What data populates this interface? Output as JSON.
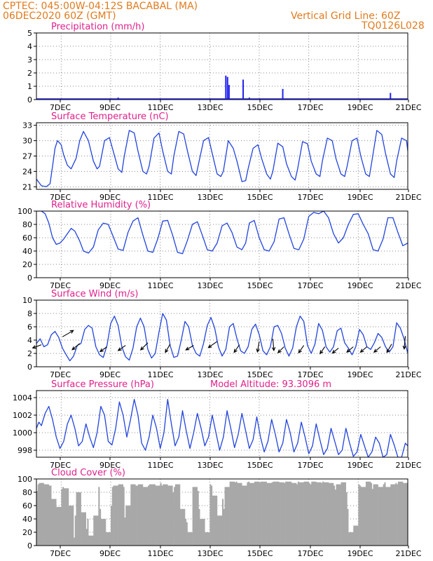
{
  "header": {
    "line1": "CPTEC:    045:00W-04:12S   BACABAL (MA)",
    "line2": "06DEC2020 60Z (GMT)",
    "grid_note": "Vertical Grid Line: 60Z",
    "code": "TQ0126L028"
  },
  "x_ticks": [
    "7DEC",
    "9DEC",
    "11DEC",
    "13DEC",
    "15DEC",
    "17DEC",
    "19DEC",
    "21DEC"
  ],
  "chart_data": [
    {
      "type": "bar",
      "title": "Precipitation (mm/h)",
      "ylim": [
        0,
        5
      ],
      "yticks": [
        "0",
        "1",
        "2",
        "3",
        "4",
        "5"
      ],
      "grid": true,
      "color": "#2222ee",
      "bars": [
        {
          "day": 9.3,
          "value": 0.15
        },
        {
          "day": 13.65,
          "value": 1.8
        },
        {
          "day": 13.72,
          "value": 1.7
        },
        {
          "day": 13.78,
          "value": 1.1
        },
        {
          "day": 14.35,
          "value": 1.5
        },
        {
          "day": 14.6,
          "value": 0.15
        },
        {
          "day": 15.95,
          "value": 0.8
        },
        {
          "day": 20.3,
          "value": 0.5
        }
      ]
    },
    {
      "type": "line",
      "title": "Surface Temperature (nC)",
      "ylim": [
        20.5,
        33.5
      ],
      "yticks": [
        "21",
        "24",
        "27",
        "30",
        "33"
      ],
      "grid": true,
      "color": "#2244dd",
      "x": [
        6.0,
        6.2,
        6.4,
        6.55,
        6.65,
        6.75,
        6.85,
        7.0,
        7.1,
        7.25,
        7.4,
        7.6,
        7.75,
        7.9,
        8.1,
        8.3,
        8.45,
        8.55,
        8.75,
        8.95,
        9.1,
        9.3,
        9.45,
        9.55,
        9.75,
        9.95,
        10.1,
        10.3,
        10.45,
        10.55,
        10.75,
        10.95,
        11.1,
        11.3,
        11.45,
        11.55,
        11.75,
        11.95,
        12.1,
        12.3,
        12.45,
        12.55,
        12.75,
        12.95,
        13.1,
        13.3,
        13.45,
        13.55,
        13.75,
        13.95,
        14.1,
        14.3,
        14.45,
        14.55,
        14.75,
        14.95,
        15.1,
        15.3,
        15.45,
        15.55,
        15.75,
        15.95,
        16.1,
        16.3,
        16.45,
        16.55,
        16.75,
        16.95,
        17.1,
        17.3,
        17.45,
        17.55,
        17.75,
        17.95,
        18.1,
        18.3,
        18.45,
        18.55,
        18.75,
        18.95,
        19.1,
        19.3,
        19.45,
        19.55,
        19.75,
        19.95,
        20.1,
        20.3,
        20.45,
        20.55,
        20.75,
        20.95,
        21.0
      ],
      "y": [
        22.5,
        21.2,
        21.0,
        21.6,
        25.0,
        28.5,
        30.0,
        29.2,
        27.2,
        25.2,
        24.5,
        26.5,
        30.0,
        31.8,
        30.0,
        26.0,
        24.5,
        25.0,
        30.0,
        30.6,
        28.0,
        24.5,
        23.8,
        27.0,
        32.0,
        31.5,
        28.0,
        24.0,
        23.5,
        25.0,
        30.5,
        31.5,
        28.0,
        24.0,
        23.5,
        27.0,
        31.8,
        31.3,
        28.0,
        24.0,
        23.2,
        25.5,
        30.0,
        30.6,
        27.5,
        23.5,
        23.0,
        24.0,
        30.0,
        28.5,
        26.0,
        22.0,
        22.2,
        24.5,
        28.5,
        29.2,
        26.5,
        23.5,
        22.5,
        24.0,
        29.5,
        28.8,
        25.5,
        23.0,
        22.3,
        24.5,
        29.8,
        29.4,
        26.0,
        23.5,
        23.0,
        26.0,
        30.5,
        30.0,
        26.5,
        23.5,
        23.0,
        25.0,
        30.0,
        30.5,
        27.0,
        23.5,
        23.0,
        26.0,
        32.0,
        31.2,
        27.5,
        23.5,
        22.8,
        26.0,
        30.5,
        30.0,
        28.0
      ]
    },
    {
      "type": "line",
      "title": "Relative Humidity (%)",
      "ylim": [
        0,
        100
      ],
      "yticks": [
        "0",
        "20",
        "40",
        "60",
        "80",
        "100"
      ],
      "grid": true,
      "color": "#2244dd",
      "x": [
        6.0,
        6.2,
        6.35,
        6.5,
        6.65,
        6.8,
        6.95,
        7.1,
        7.25,
        7.4,
        7.55,
        7.75,
        7.9,
        8.1,
        8.3,
        8.5,
        8.7,
        8.9,
        9.1,
        9.3,
        9.5,
        9.7,
        9.9,
        10.1,
        10.3,
        10.5,
        10.7,
        10.9,
        11.1,
        11.3,
        11.5,
        11.7,
        11.9,
        12.1,
        12.3,
        12.5,
        12.7,
        12.9,
        13.1,
        13.3,
        13.5,
        13.7,
        13.9,
        14.1,
        14.3,
        14.45,
        14.6,
        14.8,
        15.0,
        15.2,
        15.4,
        15.6,
        15.8,
        16.0,
        16.2,
        16.4,
        16.6,
        16.8,
        17.0,
        17.2,
        17.4,
        17.6,
        17.8,
        18.0,
        18.2,
        18.4,
        18.6,
        18.8,
        19.0,
        19.2,
        19.4,
        19.6,
        19.8,
        20.0,
        20.2,
        20.4,
        20.6,
        20.8,
        21.0
      ],
      "y": [
        100,
        100,
        96,
        82,
        60,
        50,
        52,
        58,
        66,
        74,
        70,
        55,
        40,
        37,
        46,
        72,
        82,
        80,
        62,
        43,
        41,
        68,
        85,
        90,
        64,
        40,
        38,
        58,
        85,
        86,
        64,
        38,
        36,
        56,
        80,
        84,
        64,
        42,
        40,
        52,
        78,
        82,
        68,
        46,
        42,
        52,
        82,
        86,
        60,
        42,
        40,
        54,
        88,
        90,
        66,
        44,
        42,
        58,
        92,
        98,
        96,
        100,
        90,
        66,
        52,
        60,
        80,
        95,
        96,
        80,
        66,
        42,
        40,
        58,
        90,
        90,
        68,
        48,
        52
      ]
    },
    {
      "type": "line",
      "title": "Surface Wind (m/s)",
      "ylim": [
        0,
        10
      ],
      "yticks": [
        "0",
        "2",
        "4",
        "6",
        "8",
        "10"
      ],
      "grid": true,
      "color": "#2244dd",
      "x": [
        6.0,
        6.15,
        6.3,
        6.45,
        6.6,
        6.75,
        6.9,
        7.05,
        7.2,
        7.35,
        7.5,
        7.65,
        7.8,
        7.95,
        8.1,
        8.25,
        8.4,
        8.55,
        8.7,
        8.85,
        9.0,
        9.15,
        9.3,
        9.45,
        9.6,
        9.75,
        9.9,
        10.05,
        10.2,
        10.35,
        10.5,
        10.65,
        10.8,
        10.95,
        11.1,
        11.25,
        11.4,
        11.55,
        11.7,
        11.85,
        12.0,
        12.15,
        12.3,
        12.45,
        12.6,
        12.75,
        12.9,
        13.05,
        13.2,
        13.35,
        13.5,
        13.65,
        13.8,
        13.95,
        14.1,
        14.25,
        14.4,
        14.55,
        14.7,
        14.85,
        15.0,
        15.15,
        15.3,
        15.45,
        15.6,
        15.75,
        15.9,
        16.05,
        16.2,
        16.35,
        16.5,
        16.65,
        16.8,
        16.95,
        17.1,
        17.25,
        17.4,
        17.55,
        17.7,
        17.85,
        18.0,
        18.15,
        18.3,
        18.45,
        18.6,
        18.75,
        18.9,
        19.05,
        19.2,
        19.35,
        19.5,
        19.65,
        19.8,
        19.95,
        20.1,
        20.25,
        20.4,
        20.55,
        20.7,
        20.85,
        21.0
      ],
      "y": [
        3.5,
        4.2,
        3.0,
        3.3,
        4.8,
        5.3,
        4.4,
        2.8,
        1.8,
        0.9,
        1.6,
        3.2,
        3.5,
        5.6,
        6.2,
        5.8,
        3.0,
        1.8,
        1.4,
        3.2,
        6.5,
        7.6,
        6.2,
        3.0,
        1.5,
        1.0,
        2.8,
        6.0,
        7.3,
        6.0,
        2.6,
        1.3,
        2.0,
        5.2,
        8.0,
        7.0,
        3.2,
        1.4,
        1.6,
        4.0,
        6.8,
        6.0,
        3.2,
        2.0,
        1.6,
        3.5,
        6.2,
        7.4,
        5.8,
        3.0,
        1.6,
        2.6,
        6.0,
        6.5,
        4.2,
        2.4,
        2.0,
        3.0,
        5.6,
        6.4,
        4.8,
        2.4,
        1.8,
        3.0,
        6.0,
        6.2,
        5.0,
        2.8,
        1.6,
        2.8,
        6.0,
        7.6,
        6.8,
        3.2,
        2.0,
        3.4,
        6.5,
        5.5,
        3.0,
        2.2,
        3.0,
        5.4,
        5.8,
        3.6,
        2.8,
        1.8,
        3.0,
        5.6,
        4.8,
        3.0,
        2.6,
        3.6,
        5.0,
        4.4,
        3.0,
        2.2,
        3.0,
        6.6,
        5.8,
        4.2,
        2.0
      ],
      "vectors": [
        {
          "day": 6.2,
          "speed": 3.3,
          "dir": 200
        },
        {
          "day": 7.05,
          "speed": 4.5,
          "dir": 30
        },
        {
          "day": 7.75,
          "speed": 3.5,
          "dir": 220
        },
        {
          "day": 8.85,
          "speed": 3.0,
          "dir": 215
        },
        {
          "day": 9.6,
          "speed": 3.2,
          "dir": 215
        },
        {
          "day": 10.5,
          "speed": 3.6,
          "dir": 225
        },
        {
          "day": 11.4,
          "speed": 3.4,
          "dir": 240
        },
        {
          "day": 12.35,
          "speed": 3.2,
          "dir": 210
        },
        {
          "day": 13.3,
          "speed": 3.8,
          "dir": 215
        },
        {
          "day": 14.2,
          "speed": 3.3,
          "dir": 235
        },
        {
          "day": 15.0,
          "speed": 3.8,
          "dir": 260
        },
        {
          "day": 15.55,
          "speed": 4.2,
          "dir": 275
        },
        {
          "day": 16.0,
          "speed": 3.0,
          "dir": 225
        },
        {
          "day": 16.8,
          "speed": 3.2,
          "dir": 235
        },
        {
          "day": 17.65,
          "speed": 3.0,
          "dir": 235
        },
        {
          "day": 18.2,
          "speed": 2.8,
          "dir": 220
        },
        {
          "day": 18.8,
          "speed": 3.0,
          "dir": 220
        },
        {
          "day": 19.35,
          "speed": 3.0,
          "dir": 220
        },
        {
          "day": 19.9,
          "speed": 3.0,
          "dir": 220
        },
        {
          "day": 20.35,
          "speed": 3.4,
          "dir": 240
        },
        {
          "day": 20.9,
          "speed": 4.6,
          "dir": 265
        }
      ]
    },
    {
      "type": "line",
      "title": "Surface Pressure (hPa)",
      "annotation": "Model Altitude: 93.3096 m",
      "ylim": [
        997.2,
        1004.8
      ],
      "yticks": [
        "998",
        "1000",
        "1002",
        "1004"
      ],
      "grid": true,
      "color": "#2244dd",
      "x": [
        6.0,
        6.1,
        6.2,
        6.35,
        6.5,
        6.65,
        6.8,
        6.95,
        7.1,
        7.25,
        7.4,
        7.55,
        7.7,
        7.85,
        8.0,
        8.15,
        8.3,
        8.45,
        8.6,
        8.75,
        8.9,
        9.05,
        9.2,
        9.35,
        9.5,
        9.65,
        9.8,
        9.95,
        10.1,
        10.25,
        10.4,
        10.55,
        10.7,
        10.85,
        11.0,
        11.15,
        11.3,
        11.45,
        11.6,
        11.75,
        11.9,
        12.05,
        12.2,
        12.35,
        12.5,
        12.65,
        12.8,
        12.95,
        13.1,
        13.25,
        13.4,
        13.55,
        13.7,
        13.85,
        14.0,
        14.15,
        14.3,
        14.45,
        14.6,
        14.75,
        14.9,
        15.05,
        15.2,
        15.35,
        15.5,
        15.65,
        15.8,
        15.95,
        16.1,
        16.25,
        16.4,
        16.55,
        16.7,
        16.85,
        17.0,
        17.15,
        17.3,
        17.45,
        17.6,
        17.75,
        17.9,
        18.05,
        18.2,
        18.35,
        18.5,
        18.65,
        18.8,
        18.95,
        19.1,
        19.25,
        19.4,
        19.55,
        19.7,
        19.85,
        20.0,
        20.15,
        20.3,
        20.45,
        20.6,
        20.75,
        20.9,
        21.0
      ],
      "y": [
        1000.5,
        1001.2,
        1000.8,
        1002.2,
        1003.0,
        1001.5,
        999.5,
        998.2,
        999.0,
        1001.0,
        1002.0,
        1000.5,
        998.5,
        999.0,
        1001.0,
        999.5,
        998.3,
        1000.0,
        1003.0,
        1002.0,
        999.0,
        998.6,
        1000.5,
        1003.5,
        1002.0,
        999.5,
        1001.5,
        1003.8,
        1002.0,
        998.8,
        998.0,
        999.5,
        1002.0,
        1000.5,
        998.2,
        1000.0,
        1003.8,
        1001.0,
        998.5,
        999.5,
        1002.5,
        1000.2,
        998.2,
        1000.0,
        1002.2,
        1000.5,
        998.5,
        999.5,
        1002.0,
        1000.0,
        998.0,
        999.5,
        1002.5,
        1000.5,
        998.3,
        999.8,
        1002.2,
        1000.2,
        998.2,
        999.2,
        1001.8,
        999.5,
        997.8,
        999.0,
        1001.5,
        999.8,
        997.8,
        998.8,
        1001.5,
        1000.0,
        997.8,
        998.8,
        1001.2,
        999.5,
        997.6,
        998.5,
        1001.0,
        999.2,
        997.5,
        998.2,
        1000.5,
        999.0,
        997.5,
        998.0,
        1000.5,
        998.8,
        997.3,
        997.8,
        999.8,
        998.5,
        997.2,
        997.8,
        999.5,
        998.8,
        997.2,
        997.5,
        999.8,
        998.6,
        997.2,
        997.2,
        998.8,
        998.5
      ]
    },
    {
      "type": "area",
      "title": "Cloud Cover (%)",
      "ylim": [
        0,
        100
      ],
      "yticks": [
        "0",
        "20",
        "40",
        "60",
        "80",
        "100"
      ],
      "grid": true,
      "color": "#a8a8a8",
      "x": [
        6.0,
        6.05,
        6.1,
        6.3,
        6.5,
        6.55,
        6.6,
        6.8,
        7.0,
        7.05,
        7.1,
        7.3,
        7.5,
        7.55,
        7.6,
        7.8,
        8.0,
        8.05,
        8.1,
        8.3,
        8.5,
        8.55,
        8.6,
        8.8,
        9.0,
        9.05,
        9.1,
        9.3,
        9.5,
        9.55,
        9.6,
        9.8,
        10.0,
        10.05,
        10.1,
        10.3,
        10.5,
        10.55,
        10.6,
        10.8,
        11.0,
        11.05,
        11.1,
        11.3,
        11.5,
        11.55,
        11.6,
        11.8,
        12.0,
        12.05,
        12.1,
        12.3,
        12.5,
        12.55,
        12.6,
        12.8,
        13.0,
        13.05,
        13.1,
        13.3,
        13.5,
        13.55,
        13.6,
        13.8,
        14.0,
        14.05,
        14.1,
        14.3,
        14.5,
        14.55,
        14.6,
        14.8,
        15.0,
        15.05,
        15.1,
        15.3,
        15.5,
        15.55,
        15.6,
        15.8,
        16.0,
        16.05,
        16.1,
        16.3,
        16.5,
        16.55,
        16.6,
        16.8,
        17.0,
        17.05,
        17.1,
        17.3,
        17.5,
        17.55,
        17.6,
        17.8,
        18.0,
        18.05,
        18.1,
        18.3,
        18.5,
        18.55,
        18.6,
        18.8,
        19.0,
        19.05,
        19.1,
        19.3,
        19.5,
        19.55,
        19.6,
        19.8,
        20.0,
        20.05,
        20.1,
        20.3,
        20.5,
        20.55,
        20.6,
        20.8,
        21.0
      ],
      "y": [
        82,
        92,
        94,
        92,
        90,
        90,
        70,
        58,
        85,
        88,
        86,
        60,
        12,
        45,
        80,
        50,
        25,
        40,
        15,
        45,
        88,
        55,
        40,
        20,
        60,
        88,
        90,
        92,
        88,
        42,
        60,
        92,
        90,
        90,
        92,
        88,
        90,
        92,
        92,
        90,
        94,
        90,
        92,
        90,
        80,
        88,
        92,
        55,
        40,
        35,
        20,
        88,
        82,
        55,
        40,
        20,
        92,
        90,
        75,
        45,
        70,
        55,
        88,
        96,
        95,
        96,
        94,
        90,
        95,
        96,
        94,
        96,
        95,
        96,
        96,
        94,
        95,
        96,
        96,
        95,
        94,
        96,
        96,
        94,
        92,
        96,
        95,
        96,
        94,
        92,
        96,
        95,
        94,
        96,
        95,
        94,
        90,
        84,
        92,
        95,
        80,
        55,
        20,
        30,
        92,
        90,
        88,
        96,
        94,
        85,
        92,
        88,
        92,
        95,
        88,
        92,
        94,
        92,
        96,
        94,
        96
      ]
    }
  ]
}
